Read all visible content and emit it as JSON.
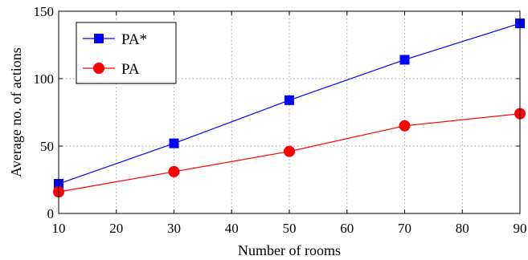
{
  "chart_data": {
    "type": "line",
    "title": "",
    "xlabel": "Number of rooms",
    "ylabel": "Average no. of actions",
    "xlim": [
      10,
      90
    ],
    "ylim": [
      0,
      150
    ],
    "xticks": [
      10,
      20,
      30,
      40,
      50,
      60,
      70,
      80,
      90
    ],
    "yticks": [
      0,
      50,
      100,
      150
    ],
    "grid": true,
    "legend_position": "top-left",
    "x": [
      10,
      30,
      50,
      70,
      90
    ],
    "series": [
      {
        "name": "PA*",
        "values": [
          22,
          52,
          84,
          114,
          141
        ],
        "color": "#0000ff",
        "marker": "square"
      },
      {
        "name": "PA",
        "values": [
          16,
          31,
          46,
          65,
          74
        ],
        "color": "#ff0000",
        "marker": "circle"
      }
    ]
  }
}
